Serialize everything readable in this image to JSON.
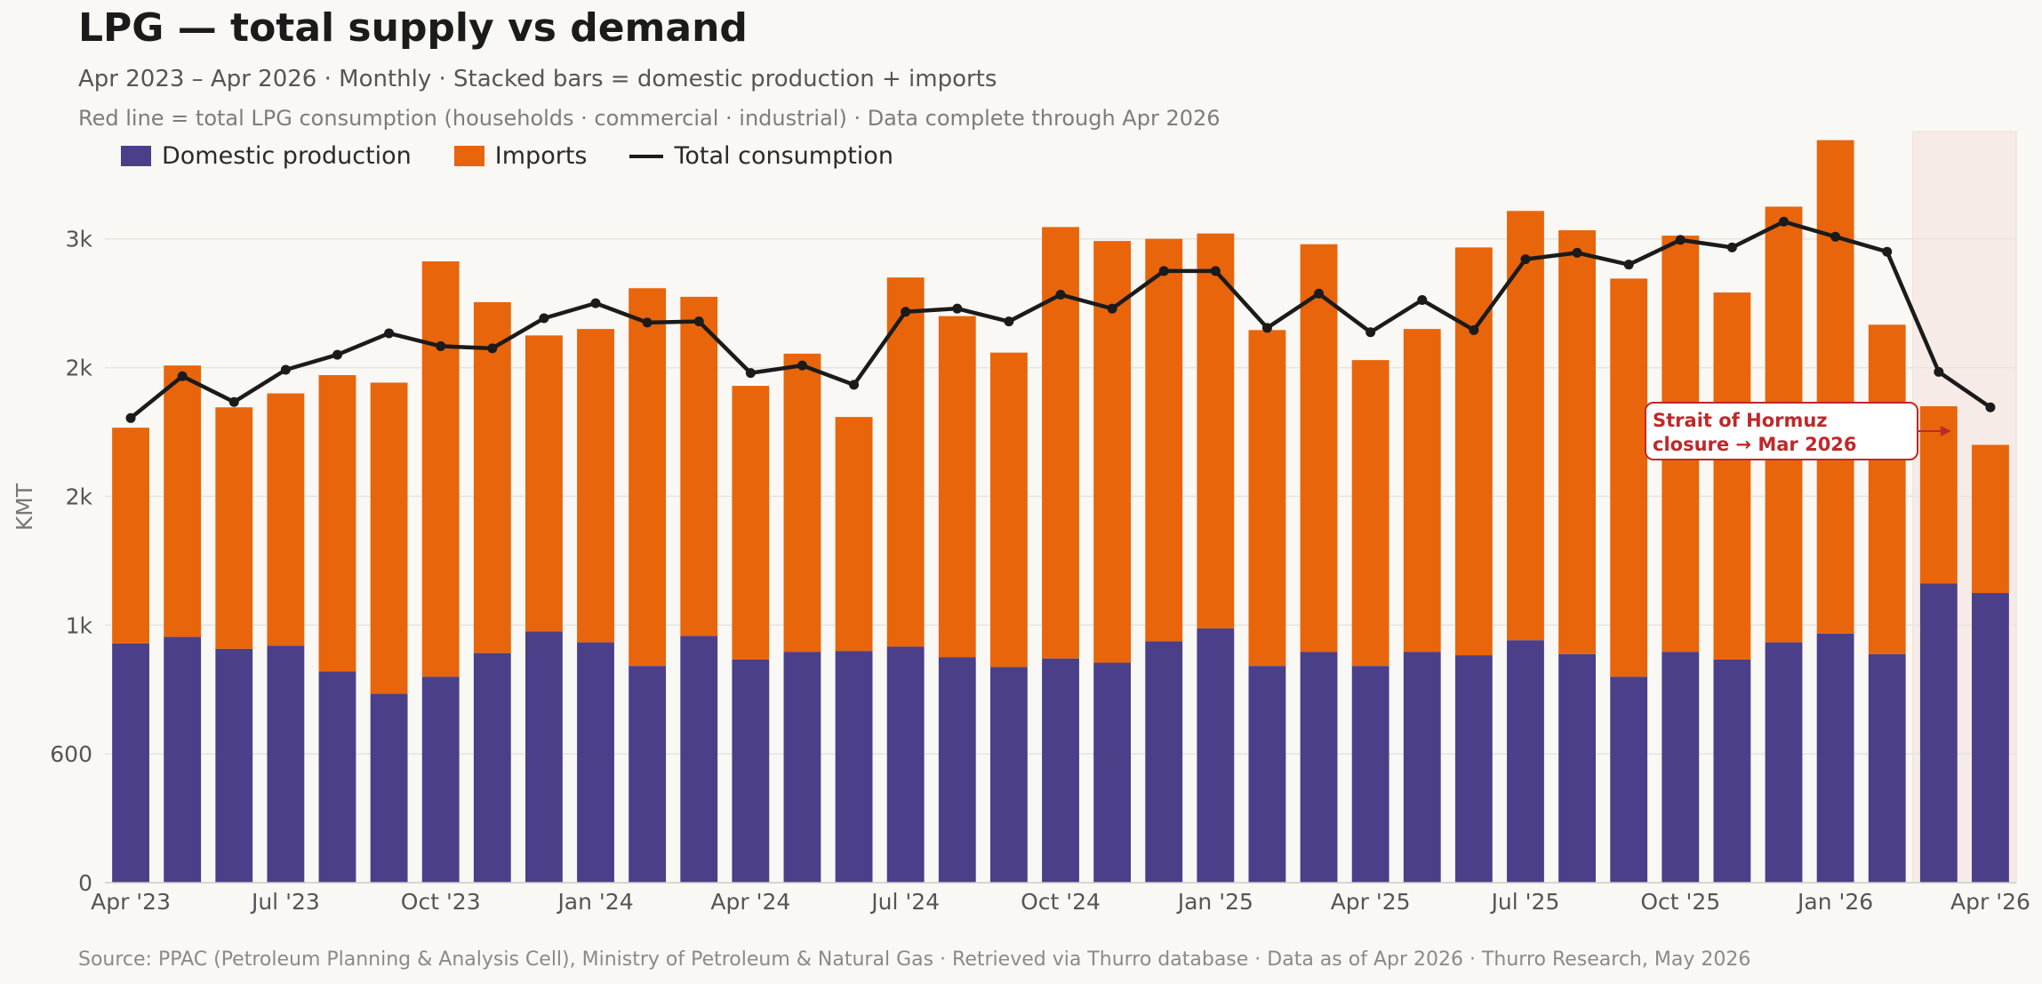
{
  "title": "LPG — total supply vs demand",
  "subtitle": "Apr 2023 – Apr 2026  ·  Monthly  ·  Stacked bars = domestic production + imports",
  "subtitle2": "Red line = total LPG consumption (households · commercial · industrial)  ·  Data complete through Apr 2026",
  "source": "Source: PPAC (Petroleum Planning & Analysis Cell), Ministry of Petroleum & Natural Gas · Retrieved via Thurro database · Data as of Apr 2026 · Thurro Research, May 2026",
  "legend": {
    "domestic": "Domestic production",
    "imports": "Imports",
    "consumption": "Total consumption"
  },
  "colors": {
    "domestic": "#4b3f8a",
    "imports": "#e8650c",
    "consumption": "#1b1b1b",
    "annotation": "#c0282a",
    "shade": "#f6ebe6"
  },
  "annotation": {
    "line1": "Strait of Hormuz",
    "line2": "closure → Mar 2026"
  },
  "chart_data": {
    "type": "bar",
    "stacked": true,
    "ylabel": "KMT",
    "ylim": [
      0,
      3500
    ],
    "yticks": [
      {
        "value": 0,
        "label": "0"
      },
      {
        "value": 600,
        "label": "600"
      },
      {
        "value": 1200,
        "label": "1k"
      },
      {
        "value": 1800,
        "label": "2k"
      },
      {
        "value": 2400,
        "label": "2k"
      },
      {
        "value": 3000,
        "label": "3k"
      }
    ],
    "grid": true,
    "legend_position": "top-left",
    "categories": [
      "Apr '23",
      "May '23",
      "Jun '23",
      "Jul '23",
      "Aug '23",
      "Sep '23",
      "Oct '23",
      "Nov '23",
      "Dec '23",
      "Jan '24",
      "Feb '24",
      "Mar '24",
      "Apr '24",
      "May '24",
      "Jun '24",
      "Jul '24",
      "Aug '24",
      "Sep '24",
      "Oct '24",
      "Nov '24",
      "Dec '24",
      "Jan '25",
      "Feb '25",
      "Mar '25",
      "Apr '25",
      "May '25",
      "Jun '25",
      "Jul '25",
      "Aug '25",
      "Sep '25",
      "Oct '25",
      "Nov '25",
      "Dec '25",
      "Jan '26",
      "Feb '26",
      "Mar '26",
      "Apr '26"
    ],
    "xtick_labels": [
      {
        "index": 0,
        "label": "Apr '23"
      },
      {
        "index": 3,
        "label": "Jul '23"
      },
      {
        "index": 6,
        "label": "Oct '23"
      },
      {
        "index": 9,
        "label": "Jan '24"
      },
      {
        "index": 12,
        "label": "Apr '24"
      },
      {
        "index": 15,
        "label": "Jul '24"
      },
      {
        "index": 18,
        "label": "Oct '24"
      },
      {
        "index": 21,
        "label": "Jan '25"
      },
      {
        "index": 24,
        "label": "Apr '25"
      },
      {
        "index": 27,
        "label": "Jul '25"
      },
      {
        "index": 30,
        "label": "Oct '25"
      },
      {
        "index": 33,
        "label": "Jan '26"
      },
      {
        "index": 36,
        "label": "Apr '26"
      }
    ],
    "series": [
      {
        "name": "Domestic production",
        "kind": "bar",
        "values": [
          1115,
          1145,
          1090,
          1105,
          985,
          880,
          960,
          1070,
          1170,
          1120,
          1010,
          1150,
          1040,
          1075,
          1080,
          1100,
          1050,
          1005,
          1045,
          1025,
          1125,
          1185,
          1010,
          1075,
          1010,
          1075,
          1060,
          1130,
          1065,
          960,
          1075,
          1040,
          1120,
          1160,
          1065,
          1395,
          1350
        ]
      },
      {
        "name": "Imports",
        "kind": "bar",
        "values": [
          1005,
          1265,
          1125,
          1175,
          1380,
          1450,
          1935,
          1635,
          1380,
          1460,
          1760,
          1580,
          1275,
          1390,
          1090,
          1720,
          1590,
          1465,
          2010,
          1965,
          1875,
          1840,
          1565,
          1900,
          1425,
          1505,
          1900,
          2000,
          1975,
          1855,
          1940,
          1710,
          2030,
          2300,
          1535,
          825,
          690
        ]
      },
      {
        "name": "Total consumption",
        "kind": "line",
        "values": [
          2165,
          2360,
          2240,
          2390,
          2460,
          2560,
          2500,
          2490,
          2630,
          2700,
          2610,
          2615,
          2375,
          2410,
          2320,
          2660,
          2675,
          2615,
          2740,
          2675,
          2850,
          2850,
          2585,
          2745,
          2565,
          2715,
          2575,
          2905,
          2935,
          2880,
          2995,
          2960,
          3080,
          3010,
          2940,
          2380,
          2215
        ]
      }
    ]
  }
}
